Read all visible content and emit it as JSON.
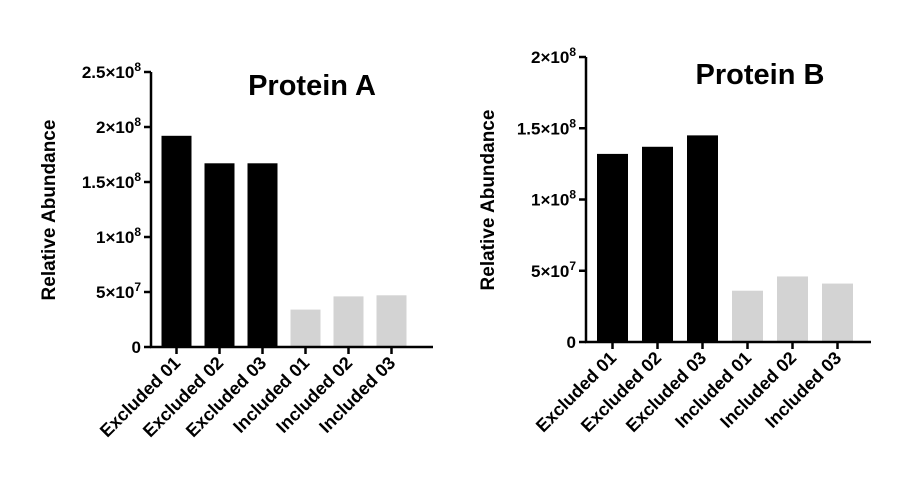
{
  "chart_data": [
    {
      "type": "bar",
      "title": "Protein A",
      "ylabel": "Relative Abundance",
      "xlabel": "",
      "ylim": [
        0,
        250000000
      ],
      "yticks": [
        0,
        50000000,
        100000000,
        150000000,
        200000000,
        250000000
      ],
      "ytick_labels": [
        {
          "mant": "0",
          "exp": ""
        },
        {
          "mant": "5×10",
          "exp": "7"
        },
        {
          "mant": "1×10",
          "exp": "8"
        },
        {
          "mant": "1.5×10",
          "exp": "8"
        },
        {
          "mant": "2×10",
          "exp": "8"
        },
        {
          "mant": "2.5×10",
          "exp": "8"
        }
      ],
      "categories": [
        "Excluded 01",
        "Excluded 02",
        "Excluded 03",
        "Included 01",
        "Included 02",
        "Included 03"
      ],
      "values": [
        192000000,
        167000000,
        167000000,
        34000000,
        46000000,
        47000000
      ],
      "colors": [
        "#000000",
        "#000000",
        "#000000",
        "#d3d3d3",
        "#d3d3d3",
        "#d3d3d3"
      ],
      "legend": "none",
      "grid": false
    },
    {
      "type": "bar",
      "title": "Protein B",
      "ylabel": "Relative Abundance",
      "xlabel": "",
      "ylim": [
        0,
        200000000
      ],
      "yticks": [
        0,
        50000000,
        100000000,
        150000000,
        200000000
      ],
      "ytick_labels": [
        {
          "mant": "0",
          "exp": ""
        },
        {
          "mant": "5×10",
          "exp": "7"
        },
        {
          "mant": "1×10",
          "exp": "8"
        },
        {
          "mant": "1.5×10",
          "exp": "8"
        },
        {
          "mant": "2×10",
          "exp": "8"
        }
      ],
      "categories": [
        "Excluded 01",
        "Excluded 02",
        "Excluded 03",
        "Included 01",
        "Included 02",
        "Included 03"
      ],
      "values": [
        132000000,
        137000000,
        145000000,
        36000000,
        46000000,
        41000000
      ],
      "colors": [
        "#000000",
        "#000000",
        "#000000",
        "#d3d3d3",
        "#d3d3d3",
        "#d3d3d3"
      ],
      "legend": "none",
      "grid": false
    }
  ]
}
